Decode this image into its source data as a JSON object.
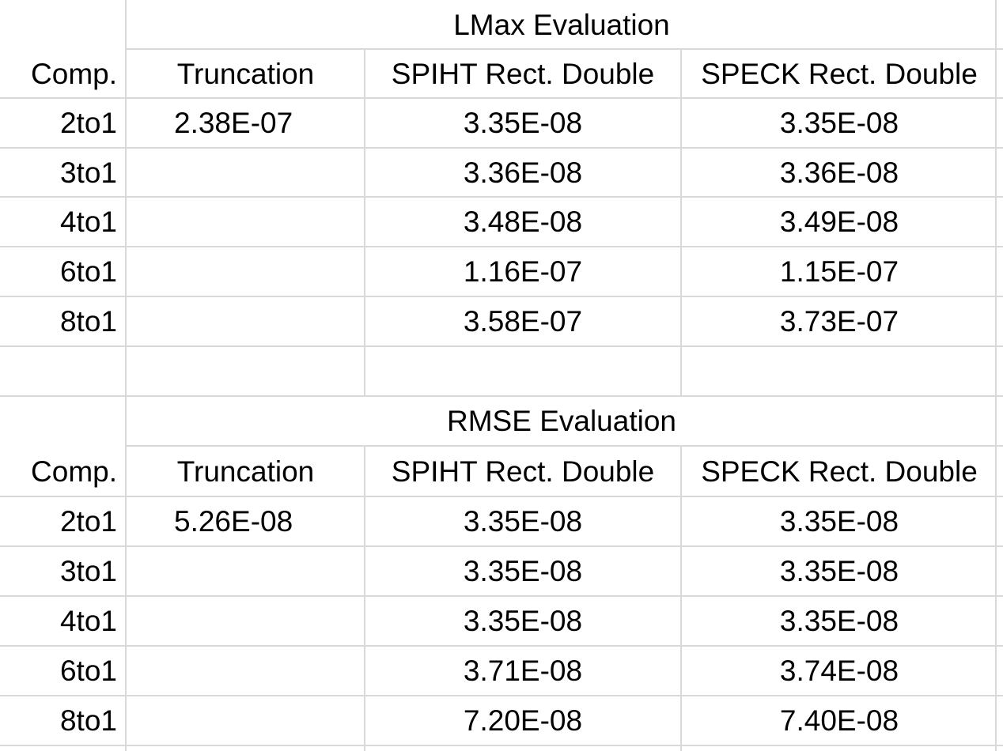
{
  "sections": [
    {
      "title": "LMax Evaluation",
      "headers": [
        "Comp.",
        "Truncation",
        "SPIHT Rect. Double",
        "SPECK Rect. Double"
      ],
      "rows": [
        [
          "2to1",
          "2.38E-07",
          "3.35E-08",
          "3.35E-08"
        ],
        [
          "3to1",
          "",
          "3.36E-08",
          "3.36E-08"
        ],
        [
          "4to1",
          "",
          "3.48E-08",
          "3.49E-08"
        ],
        [
          "6to1",
          "",
          "1.16E-07",
          "1.15E-07"
        ],
        [
          "8to1",
          "",
          "3.58E-07",
          "3.73E-07"
        ]
      ]
    },
    {
      "title": "RMSE Evaluation",
      "headers": [
        "Comp.",
        "Truncation",
        "SPIHT Rect. Double",
        "SPECK Rect. Double"
      ],
      "rows": [
        [
          "2to1",
          "5.26E-08",
          "3.35E-08",
          "3.35E-08"
        ],
        [
          "3to1",
          "",
          "3.35E-08",
          "3.35E-08"
        ],
        [
          "4to1",
          "",
          "3.35E-08",
          "3.35E-08"
        ],
        [
          "6to1",
          "",
          "3.71E-08",
          "3.74E-08"
        ],
        [
          "8to1",
          "",
          "7.20E-08",
          "7.40E-08"
        ]
      ]
    }
  ],
  "colors": {
    "gridline": "#d9d9d9",
    "text": "#000000",
    "background": "#ffffff"
  }
}
